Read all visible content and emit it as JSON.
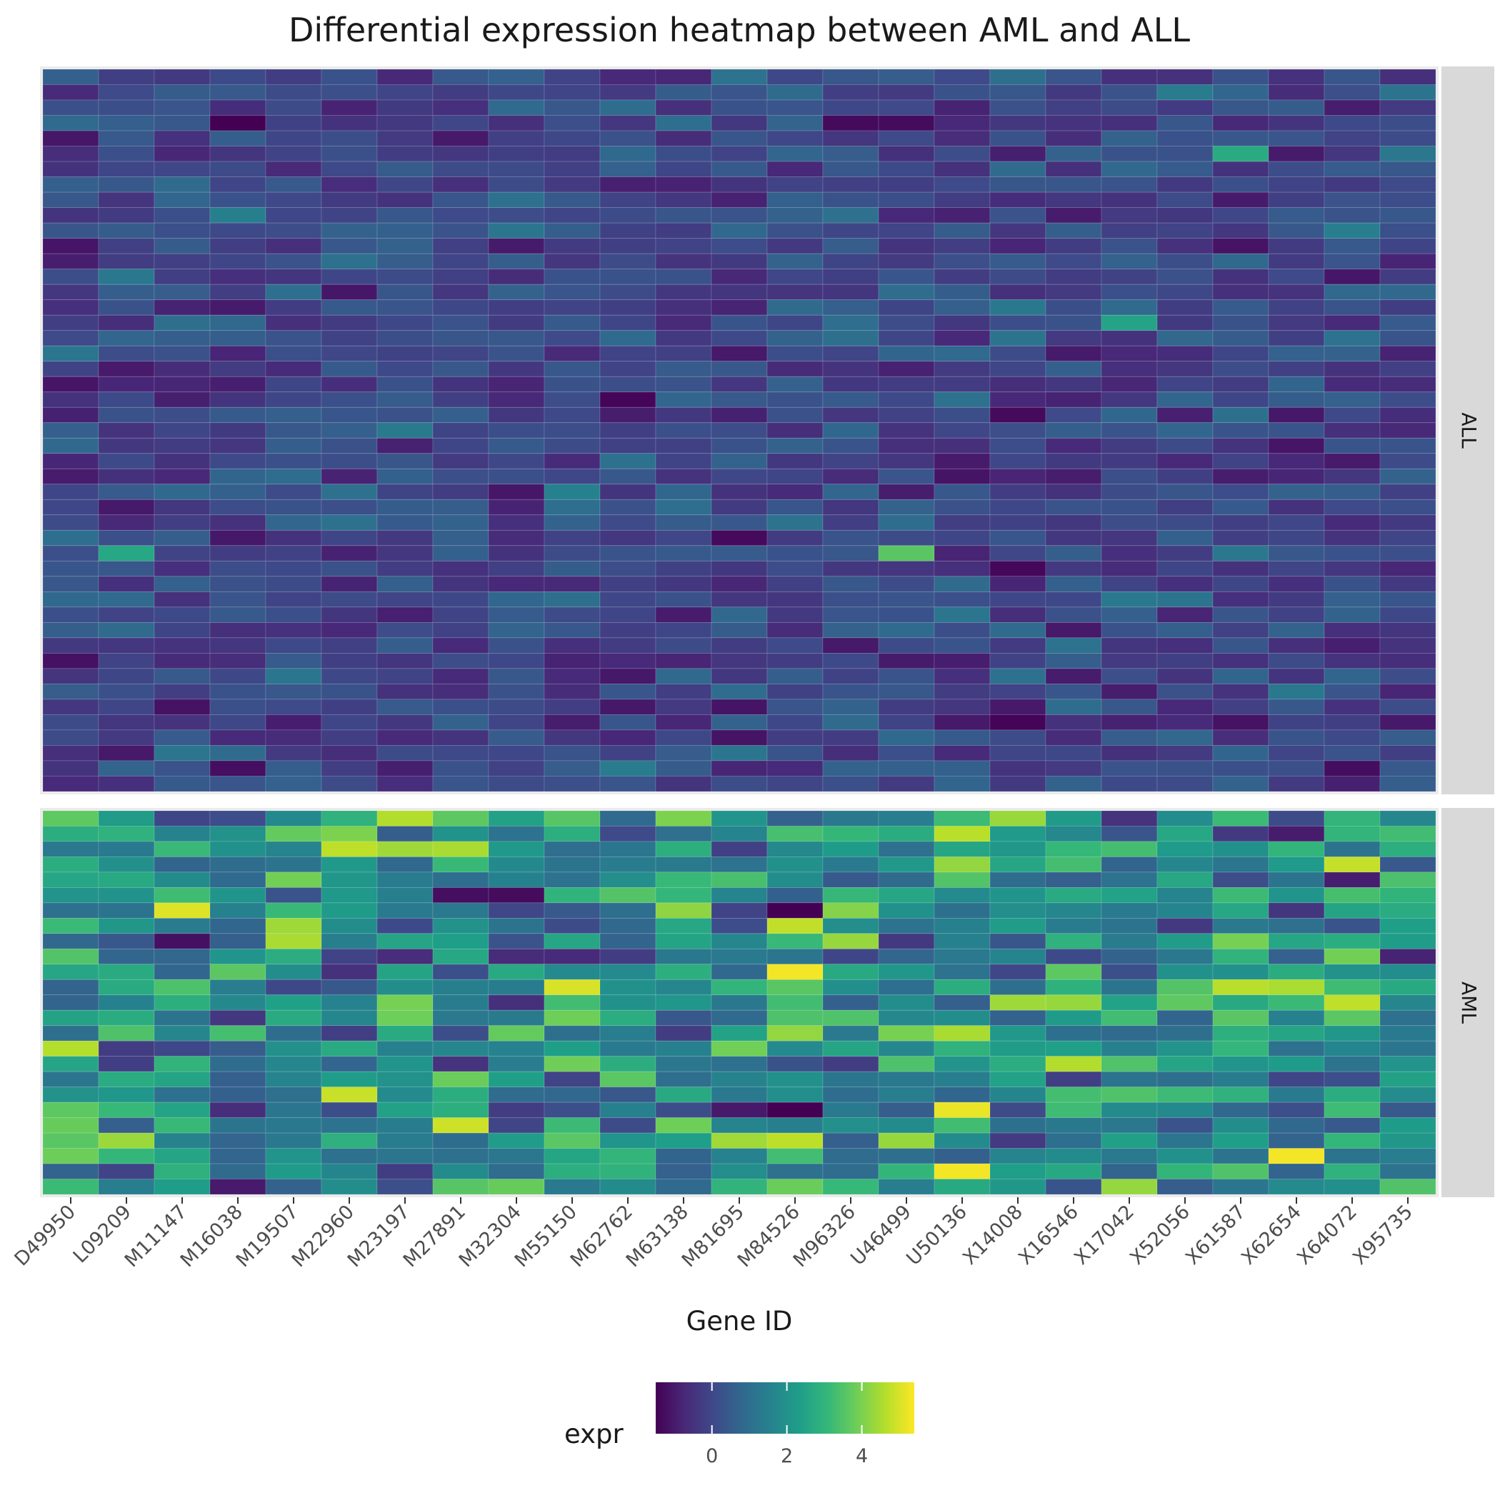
{
  "chart_data": {
    "type": "heatmap",
    "title": "Differential expression heatmap between AML and ALL",
    "xlabel": "Gene ID",
    "ylabel": "",
    "x": [
      "D49950",
      "L09209",
      "M11147",
      "M16038",
      "M19507",
      "M22960",
      "M23197",
      "M27891",
      "M32304",
      "M55150",
      "M62762",
      "M63138",
      "M81695",
      "M84526",
      "M96326",
      "U46499",
      "U50136",
      "X14008",
      "X16546",
      "X17042",
      "X52056",
      "X61587",
      "X62654",
      "X64072",
      "X95735"
    ],
    "facets": [
      {
        "label": "ALL",
        "rows": 47,
        "base": 0.0,
        "amp": 0.55
      },
      {
        "label": "AML",
        "rows": 25,
        "base": 1.8,
        "amp": 1.3
      }
    ],
    "highlights": [
      {
        "facet": "ALL",
        "row": 21,
        "gene": "M62762",
        "value": -1.4
      },
      {
        "facet": "ALL",
        "row": 31,
        "gene": "U46499",
        "value": 3.6
      },
      {
        "facet": "ALL",
        "row": 31,
        "gene": "L09209",
        "value": 2.6
      },
      {
        "facet": "ALL",
        "row": 16,
        "gene": "X17042",
        "value": 2.5
      },
      {
        "facet": "ALL",
        "row": 5,
        "gene": "X61587",
        "value": 2.7
      },
      {
        "facet": "AML",
        "row": 7,
        "gene": "M19507",
        "value": 4.4
      },
      {
        "facet": "AML",
        "row": 8,
        "gene": "M19507",
        "value": 4.5
      },
      {
        "facet": "AML",
        "row": 10,
        "gene": "M84526",
        "value": 5.3
      },
      {
        "facet": "AML",
        "row": 22,
        "gene": "X62654",
        "value": 5.3
      },
      {
        "facet": "AML",
        "row": 3,
        "gene": "X64072",
        "value": 4.8
      },
      {
        "facet": "AML",
        "row": 16,
        "gene": "X16546",
        "value": 4.6
      },
      {
        "facet": "AML",
        "row": 2,
        "gene": "M23197",
        "value": 4.4
      },
      {
        "facet": "AML",
        "row": 8,
        "gene": "M11147",
        "value": -1.2
      },
      {
        "facet": "AML",
        "row": 6,
        "gene": "M96326",
        "value": 4.1
      },
      {
        "facet": "AML",
        "row": 8,
        "gene": "M96326",
        "value": 4.3
      }
    ],
    "colorbar": {
      "title": "expr",
      "min": -1.5,
      "max": 5.4,
      "ticks": [
        0,
        2,
        4
      ],
      "tick_labels": [
        "0",
        "2",
        "4"
      ],
      "colors": [
        "#440154",
        "#482878",
        "#3e4989",
        "#31688e",
        "#26828e",
        "#1f9e89",
        "#35b779",
        "#6ece58",
        "#b5de2b",
        "#fde725"
      ]
    },
    "strip_color": "#d9d9d9",
    "panel_color": "#ebebeb"
  }
}
